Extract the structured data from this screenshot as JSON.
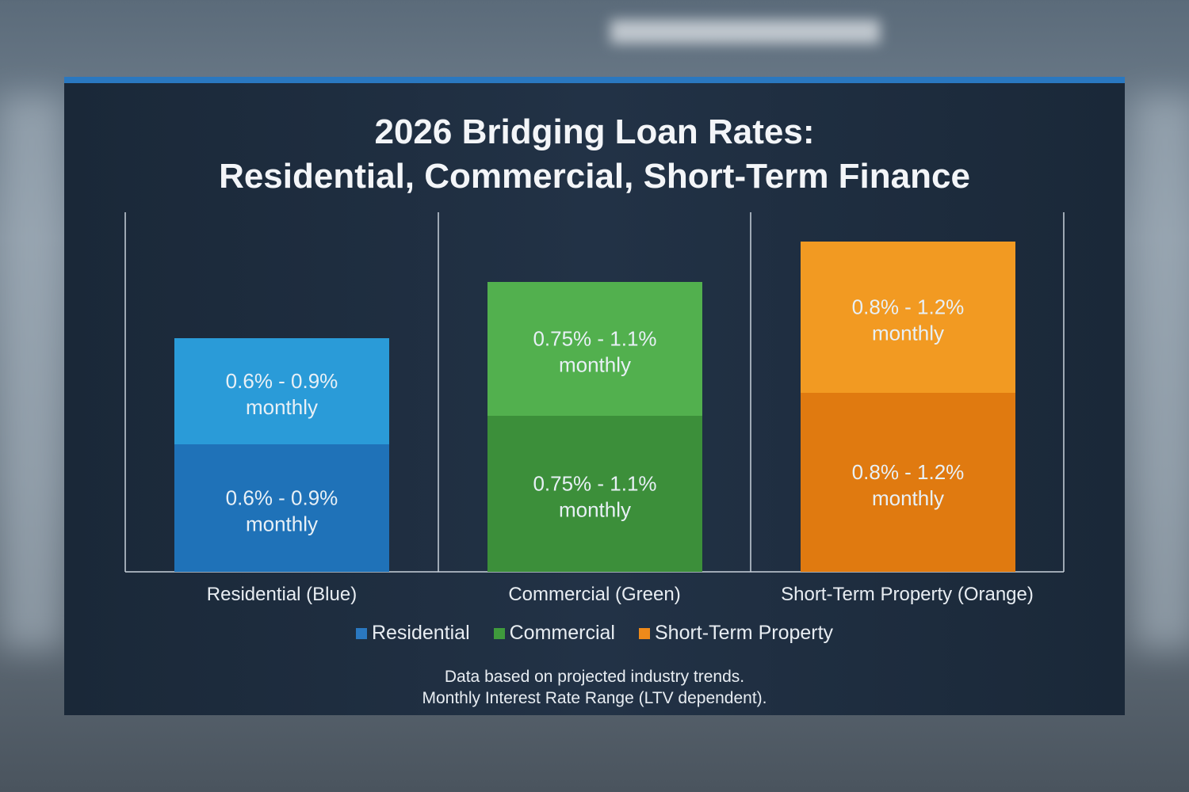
{
  "chart_data": {
    "type": "bar",
    "stacked": true,
    "title": [
      "2026 Bridging Loan Rates:",
      "Residential, Commercial, Short-Term Finance"
    ],
    "categories": [
      "Residential (Blue)",
      "Commercial (Green)",
      "Short-Term Property (Orange)"
    ],
    "bars": [
      {
        "segments": [
          {
            "label": [
              "0.6% - 0.9%",
              "monthly"
            ],
            "color": "#1f72b8"
          },
          {
            "label": [
              "0.6% - 0.9%",
              "monthly"
            ],
            "color": "#2a9bd8"
          }
        ]
      },
      {
        "segments": [
          {
            "label": [
              "0.75% - 1.1%",
              "monthly"
            ],
            "color": "#3c8f3a"
          },
          {
            "label": [
              "0.75% - 1.1%",
              "monthly"
            ],
            "color": "#52b04e"
          }
        ]
      },
      {
        "segments": [
          {
            "label": [
              "0.8% - 1.2%",
              "monthly"
            ],
            "color": "#e07a10"
          },
          {
            "label": [
              "0.8% - 1.2%",
              "monthly"
            ],
            "color": "#f29a22"
          }
        ]
      }
    ],
    "legend": [
      {
        "name": "Residential",
        "color": "#2a78c0"
      },
      {
        "name": "Commercial",
        "color": "#3f9a3c"
      },
      {
        "name": "Short-Term Property",
        "color": "#ee8a1a"
      }
    ],
    "legend_position": "bottom",
    "grid": false,
    "xlabel": "",
    "ylabel": ""
  },
  "footnote": [
    "Data based on projected industry trends.",
    "Monthly Interest Rate Range (LTV dependent)."
  ]
}
